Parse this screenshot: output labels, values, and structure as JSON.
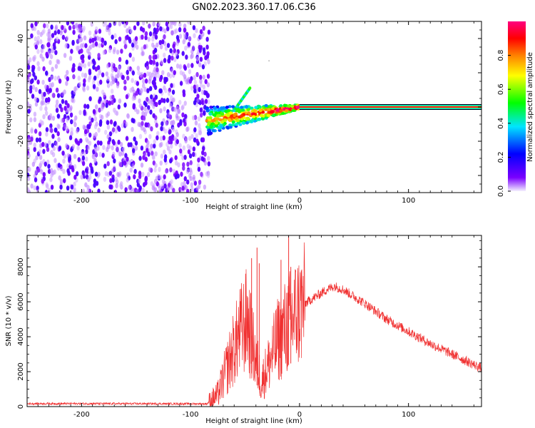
{
  "figure": {
    "title": "GN02.2023.360.17.06.C36"
  },
  "chart_data": [
    {
      "type": "heatmap",
      "title": "GN02.2023.360.17.06.C36",
      "xlabel": "Height of straight line (km)",
      "ylabel": "Frequency (Hz)",
      "xlim": [
        -250,
        167
      ],
      "ylim": [
        -50,
        50
      ],
      "x_ticks": [
        -200,
        -100,
        0,
        100
      ],
      "y_ticks": [
        -40,
        -20,
        0,
        20,
        40
      ],
      "colorbar": {
        "label": "Normalized spectral amplitude",
        "range": [
          0,
          1
        ],
        "ticks": [
          "0.0",
          "0.2",
          "0.4",
          "0.6",
          "0.8"
        ],
        "colormap": [
          "#f4f0ff",
          "#7a00ff",
          "#0000ff",
          "#00e5ff",
          "#00ff00",
          "#ffff00",
          "#ff8000",
          "#ff0000",
          "#ff0080"
        ]
      },
      "regions": [
        {
          "name": "noise",
          "x_range": [
            -250,
            -83
          ],
          "freq_range": [
            -50,
            50
          ],
          "amplitude": [
            0.0,
            0.1
          ]
        },
        {
          "name": "transition",
          "x_range": [
            -85,
            0
          ],
          "freq_center": [
            -8,
            0
          ],
          "amplitude": [
            0.2,
            0.9
          ]
        },
        {
          "name": "carrier",
          "x_range": [
            0,
            167
          ],
          "freq": 0,
          "amplitude": 0.95
        }
      ]
    },
    {
      "type": "line",
      "xlabel": "Height of straight line (km)",
      "ylabel": "SNR (10 * v/v)",
      "xlim": [
        -250,
        167
      ],
      "ylim": [
        0,
        9800
      ],
      "x_ticks": [
        -200,
        -100,
        0,
        100
      ],
      "y_ticks": [
        0,
        2000,
        4000,
        6000,
        8000
      ],
      "color": "#f03030",
      "envelope": {
        "x": [
          -250,
          -200,
          -150,
          -100,
          -85,
          -75,
          -65,
          -55,
          -48,
          -42,
          -35,
          -28,
          -20,
          -12,
          -5,
          5,
          15,
          25,
          32,
          40,
          60,
          80,
          100,
          120,
          140,
          160,
          167
        ],
        "y": [
          170,
          170,
          165,
          160,
          160,
          700,
          2500,
          4200,
          5000,
          3200,
          1400,
          2500,
          3800,
          4600,
          5200,
          5900,
          6300,
          6700,
          6900,
          6700,
          5900,
          5000,
          4300,
          3600,
          3000,
          2400,
          2200
        ]
      },
      "noise_amplitude": 280,
      "spikes": [
        {
          "x": -39,
          "y": 9100
        },
        {
          "x": -37,
          "y": 8200
        },
        {
          "x": -44,
          "y": 8500
        },
        {
          "x": -17,
          "y": 8400
        },
        {
          "x": -10,
          "y": 9800
        },
        {
          "x": -8,
          "y": 8000
        }
      ]
    }
  ]
}
